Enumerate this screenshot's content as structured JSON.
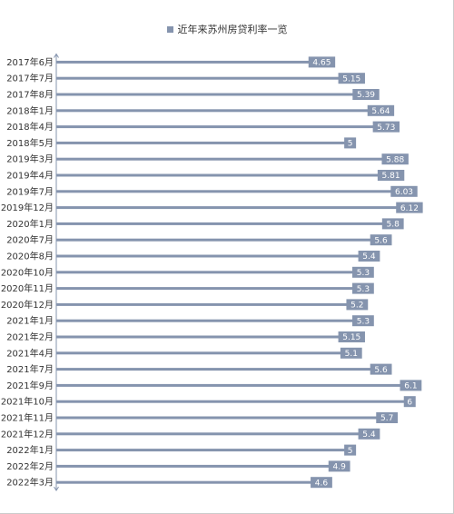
{
  "chart_data": {
    "type": "bar",
    "orientation": "horizontal",
    "legend": {
      "placement": "top-center",
      "entries": [
        "近年来苏州房贷利率一览"
      ]
    },
    "series": [
      {
        "name": "近年来苏州房贷利率一览",
        "color": "#8594ae",
        "values": [
          4.65,
          5.15,
          5.39,
          5.64,
          5.73,
          5,
          5.88,
          5.81,
          6.03,
          6.12,
          5.8,
          5.6,
          5.4,
          5.3,
          5.3,
          5.2,
          5.3,
          5.15,
          5.1,
          5.6,
          6.1,
          6,
          5.7,
          5.4,
          5,
          4.9,
          4.6
        ],
        "labels": [
          "4.65",
          "5.15",
          "5.39",
          "5.64",
          "5.73",
          "5",
          "5.88",
          "5.81",
          "6.03",
          "6.12",
          "5.8",
          "5.6",
          "5.4",
          "5.3",
          "5.3",
          "5.2",
          "5.3",
          "5.15",
          "5.1",
          "5.6",
          "6.1",
          "6",
          "5.7",
          "5.4",
          "5",
          "4.9",
          "4.6"
        ]
      }
    ],
    "categories": [
      "2017年6月",
      "2017年7月",
      "2017年8月",
      "2018年1月",
      "2018年4月",
      "2018年5月",
      "2019年3月",
      "2019年4月",
      "2019年7月",
      "2019年12月",
      "2020年1月",
      "2020年7月",
      "2020年8月",
      "2020年10月",
      "2020年11月",
      "2020年12月",
      "2021年1月",
      "2021年2月",
      "2021年4月",
      "2021年7月",
      "2021年9月",
      "2021年10月",
      "2021年11月",
      "2021年12月",
      "2022年1月",
      "2022年2月",
      "2022年3月"
    ],
    "xlim": [
      0,
      6.4
    ],
    "grid": false,
    "x_axis_visible": false
  }
}
